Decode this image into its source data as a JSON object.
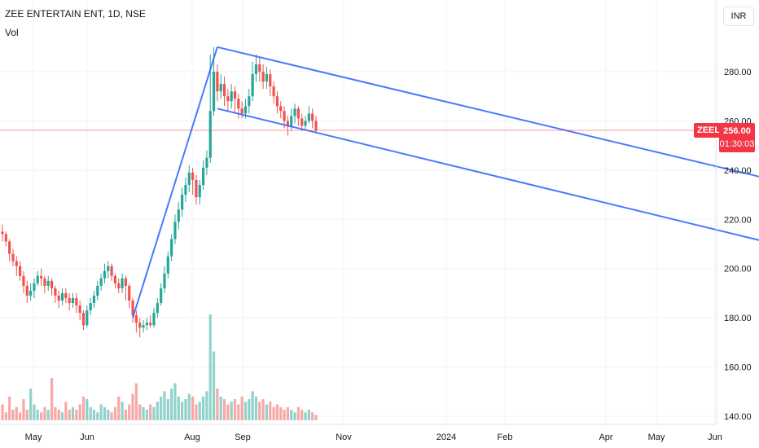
{
  "header": {
    "title": "ZEE ENTERTAIN ENT, 1D, NSE",
    "indicator": "Vol"
  },
  "currency_button": "INR",
  "last_price": {
    "symbol": "ZEEL",
    "price": "256.00",
    "countdown": "01:30:03",
    "color": "#f23645"
  },
  "colors": {
    "up": "#26a69a",
    "down": "#ef5350",
    "channel": "#2962ff",
    "grid": "#f0f3fa"
  },
  "chart_data": {
    "type": "candlestick",
    "yaxis": {
      "ticks": [
        "280.00",
        "260.00",
        "240.00",
        "220.00",
        "200.00",
        "180.00",
        "160.00",
        "140.00"
      ],
      "values": [
        280,
        260,
        240,
        220,
        200,
        180,
        160,
        140
      ],
      "ylim": [
        138,
        295
      ]
    },
    "xaxis": {
      "ticks": [
        "May",
        "Jun",
        "Aug",
        "Sep",
        "Nov",
        "2024",
        "Feb",
        "Apr",
        "May",
        "Jun"
      ]
    },
    "price_series": [
      [
        215,
        214,
        218,
        211
      ],
      [
        214,
        211,
        215,
        209
      ],
      [
        211,
        206,
        212,
        203
      ],
      [
        206,
        203,
        208,
        201
      ],
      [
        203,
        201,
        205,
        197
      ],
      [
        201,
        197,
        203,
        195
      ],
      [
        197,
        193,
        199,
        190
      ],
      [
        193,
        189,
        195,
        186
      ],
      [
        189,
        191,
        194,
        187
      ],
      [
        191,
        194,
        196,
        188
      ],
      [
        194,
        197,
        199,
        193
      ],
      [
        197,
        196,
        200,
        193
      ],
      [
        196,
        193,
        197,
        190
      ],
      [
        193,
        195,
        197,
        191
      ],
      [
        195,
        192,
        196,
        189
      ],
      [
        192,
        189,
        193,
        186
      ],
      [
        189,
        187,
        191,
        184
      ],
      [
        187,
        190,
        192,
        185
      ],
      [
        190,
        188,
        192,
        186
      ],
      [
        188,
        186,
        190,
        183
      ],
      [
        186,
        188,
        190,
        184
      ],
      [
        188,
        185,
        190,
        182
      ],
      [
        185,
        182,
        187,
        179
      ],
      [
        182,
        177,
        183,
        175
      ],
      [
        177,
        183,
        185,
        176
      ],
      [
        183,
        186,
        188,
        181
      ],
      [
        186,
        189,
        191,
        184
      ],
      [
        189,
        193,
        195,
        187
      ],
      [
        193,
        196,
        198,
        191
      ],
      [
        196,
        199,
        202,
        194
      ],
      [
        199,
        201,
        203,
        196
      ],
      [
        201,
        197,
        202,
        195
      ],
      [
        197,
        194,
        198,
        192
      ],
      [
        194,
        192,
        196,
        190
      ],
      [
        192,
        196,
        198,
        190
      ],
      [
        196,
        193,
        197,
        187
      ],
      [
        193,
        187,
        194,
        184
      ],
      [
        187,
        181,
        188,
        178
      ],
      [
        181,
        178,
        183,
        174
      ],
      [
        178,
        176,
        180,
        172
      ],
      [
        176,
        177,
        179,
        174
      ],
      [
        177,
        178,
        180,
        175
      ],
      [
        178,
        177,
        181,
        176
      ],
      [
        177,
        182,
        184,
        176
      ],
      [
        182,
        186,
        188,
        180
      ],
      [
        186,
        192,
        194,
        185
      ],
      [
        192,
        198,
        201,
        190
      ],
      [
        198,
        205,
        207,
        196
      ],
      [
        205,
        212,
        214,
        203
      ],
      [
        212,
        219,
        222,
        210
      ],
      [
        219,
        224,
        227,
        216
      ],
      [
        224,
        230,
        233,
        221
      ],
      [
        230,
        234,
        237,
        227
      ],
      [
        234,
        239,
        242,
        231
      ],
      [
        239,
        236,
        241,
        230
      ],
      [
        236,
        229,
        238,
        226
      ],
      [
        229,
        234,
        236,
        226
      ],
      [
        234,
        241,
        244,
        232
      ],
      [
        241,
        245,
        248,
        238
      ],
      [
        245,
        264,
        287,
        243
      ],
      [
        264,
        280,
        290,
        262
      ],
      [
        280,
        272,
        283,
        268
      ],
      [
        272,
        275,
        279,
        269
      ],
      [
        275,
        270,
        278,
        266
      ],
      [
        270,
        268,
        273,
        264
      ],
      [
        268,
        272,
        275,
        265
      ],
      [
        272,
        269,
        274,
        263
      ],
      [
        269,
        265,
        271,
        261
      ],
      [
        265,
        263,
        268,
        261
      ],
      [
        263,
        266,
        269,
        261
      ],
      [
        266,
        270,
        273,
        263
      ],
      [
        270,
        279,
        284,
        268
      ],
      [
        279,
        283,
        287,
        276
      ],
      [
        283,
        280,
        286,
        276
      ],
      [
        280,
        276,
        283,
        273
      ],
      [
        276,
        279,
        282,
        273
      ],
      [
        279,
        274,
        281,
        270
      ],
      [
        274,
        270,
        276,
        267
      ],
      [
        270,
        266,
        272,
        263
      ],
      [
        266,
        264,
        268,
        261
      ],
      [
        264,
        260,
        266,
        257
      ],
      [
        260,
        258,
        262,
        254
      ],
      [
        258,
        262,
        265,
        256
      ],
      [
        262,
        265,
        267,
        259
      ],
      [
        265,
        261,
        266,
        258
      ],
      [
        261,
        258,
        263,
        256
      ],
      [
        258,
        260,
        262,
        256
      ],
      [
        260,
        263,
        266,
        259
      ],
      [
        263,
        260,
        265,
        257
      ],
      [
        260,
        256,
        262,
        255
      ]
    ],
    "volume_series": [
      6,
      3,
      9,
      4,
      5,
      3,
      8,
      4,
      12,
      6,
      4,
      3,
      5,
      4,
      16,
      5,
      4,
      3,
      7,
      4,
      5,
      4,
      6,
      9,
      8,
      5,
      4,
      3,
      6,
      5,
      4,
      3,
      5,
      9,
      7,
      4,
      6,
      10,
      14,
      6,
      5,
      4,
      6,
      5,
      7,
      9,
      11,
      8,
      12,
      14,
      9,
      7,
      8,
      10,
      9,
      6,
      7,
      9,
      11,
      40,
      26,
      12,
      9,
      8,
      6,
      7,
      8,
      6,
      9,
      7,
      8,
      11,
      9,
      7,
      8,
      6,
      7,
      5,
      6,
      5,
      4,
      5,
      4,
      3,
      5,
      4,
      3,
      4,
      3,
      2
    ],
    "channel": {
      "upper_line": {
        "start": [
          61,
          290
        ],
        "end": [
          248,
          226
        ]
      },
      "lower_line": {
        "start": [
          61,
          265
        ],
        "end": [
          248,
          200
        ]
      },
      "impulse_line": {
        "start": [
          37,
          180
        ],
        "end": [
          61,
          290
        ]
      }
    },
    "grid": true
  }
}
